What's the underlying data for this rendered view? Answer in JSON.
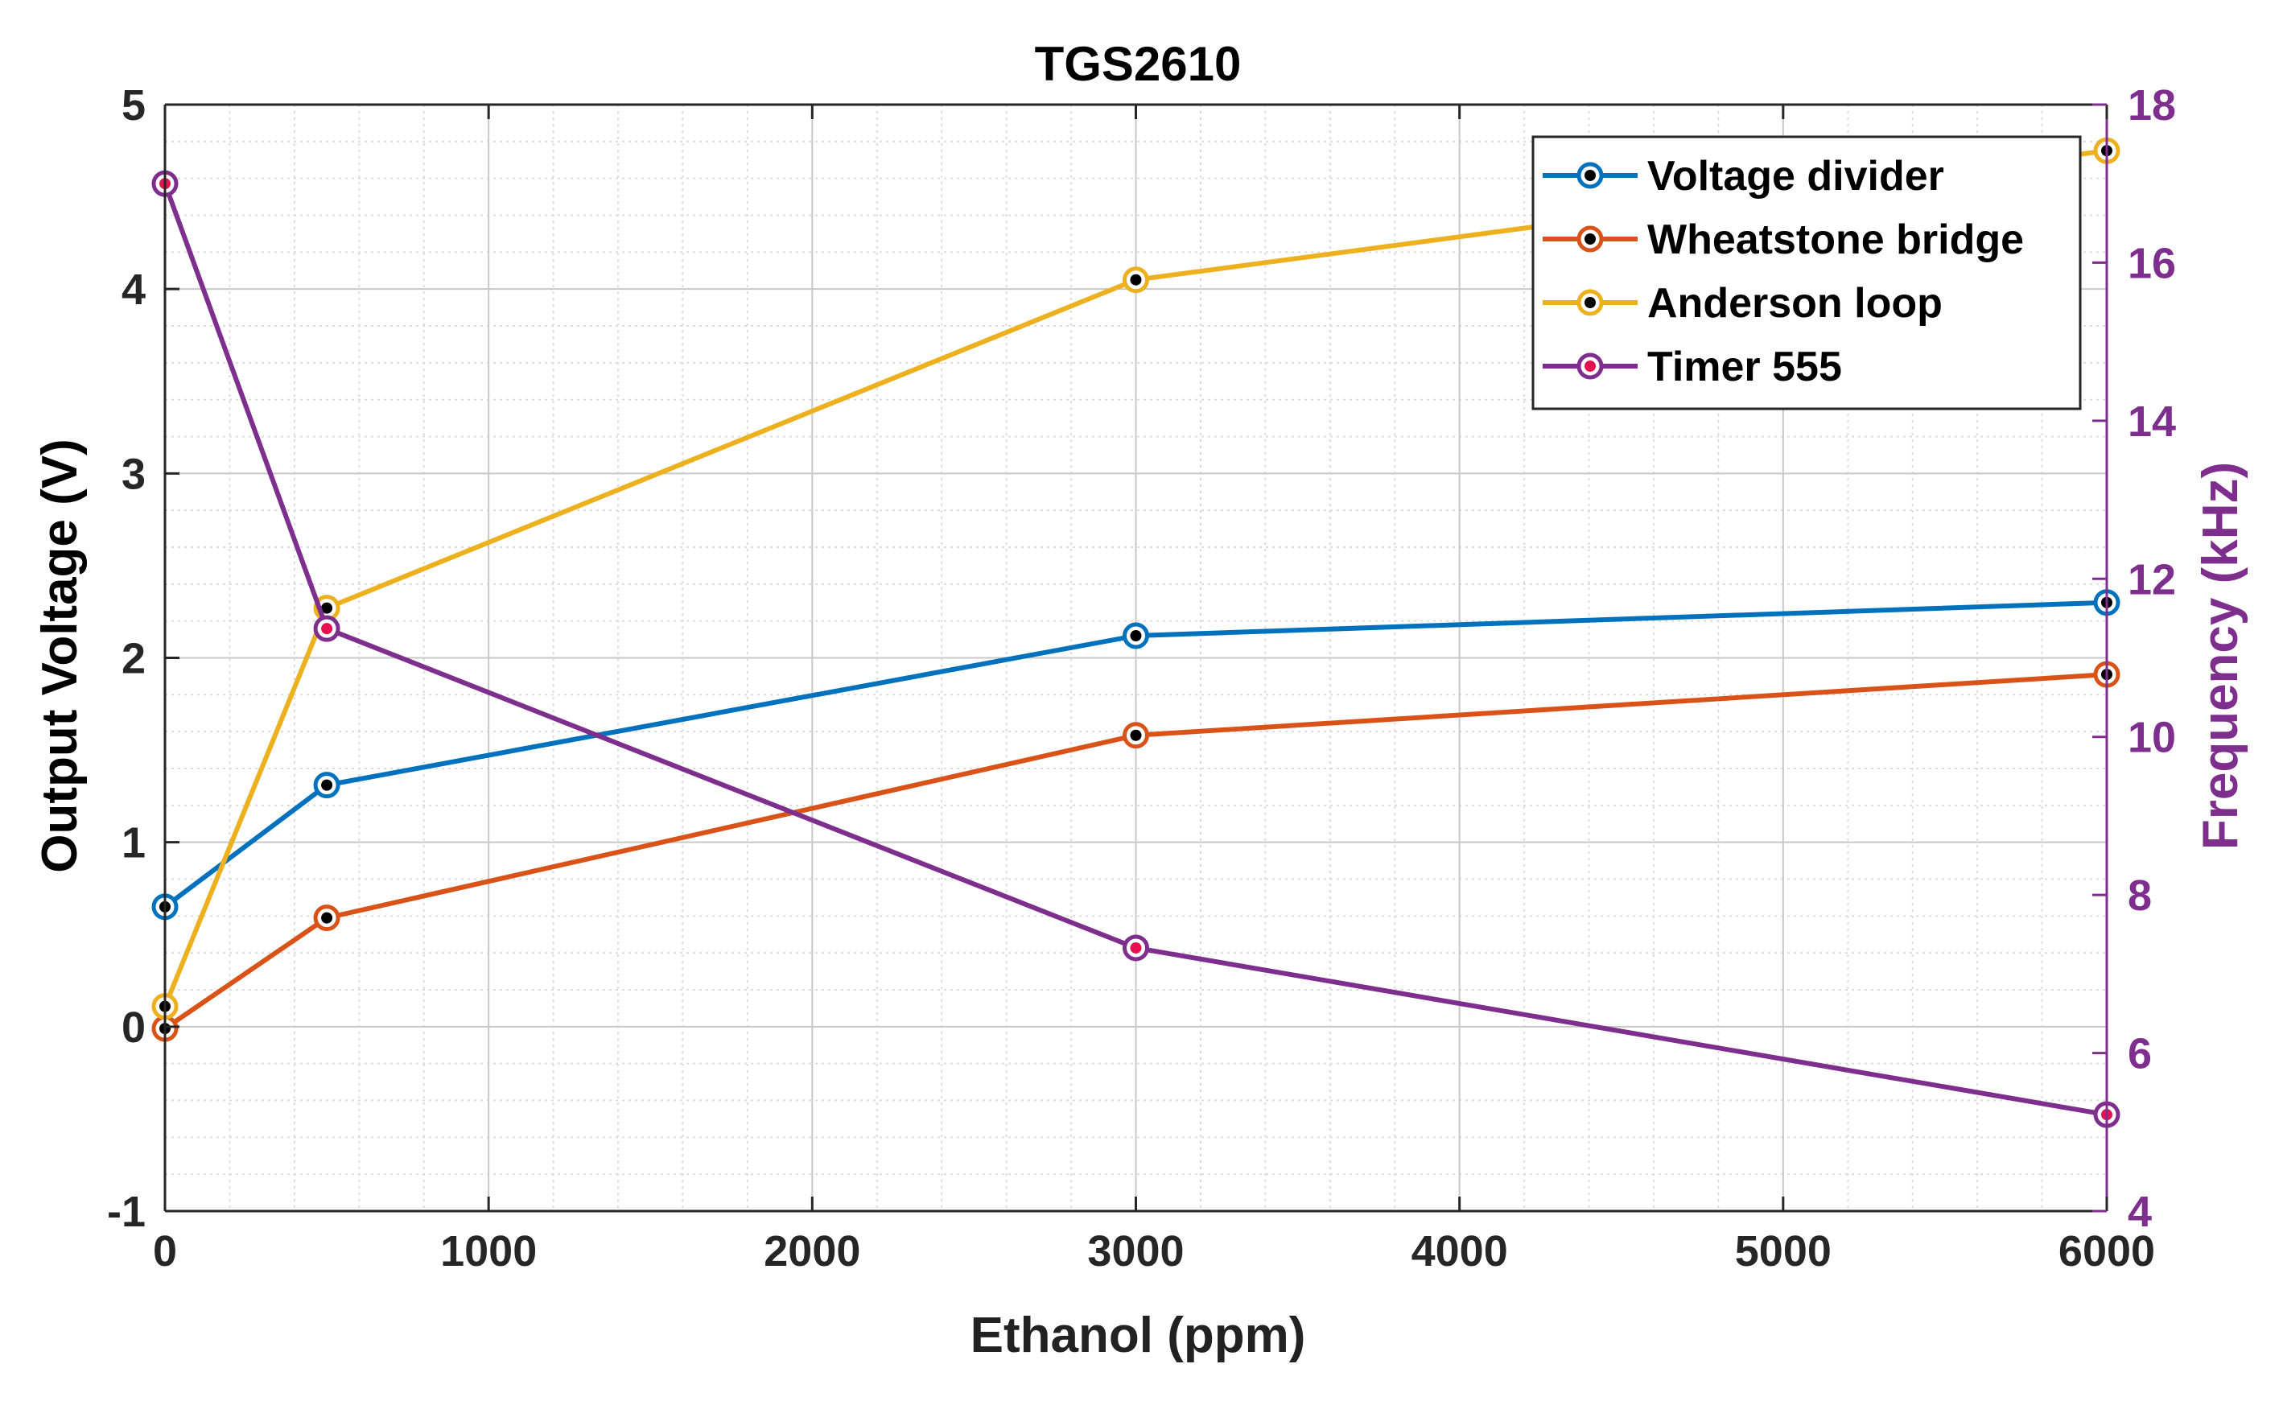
{
  "chart_data": {
    "type": "line",
    "title": "TGS2610",
    "xlabel": "Ethanol (ppm)",
    "ylabel": "Output Voltage (V)",
    "y2label": "Frequency (kHz)",
    "x": [
      0,
      500,
      3000,
      6000
    ],
    "xlim": [
      0,
      6000
    ],
    "ylim": [
      -1,
      5
    ],
    "y2lim": [
      4,
      18
    ],
    "xticks": [
      0,
      1000,
      2000,
      3000,
      4000,
      5000,
      6000
    ],
    "yticks": [
      -1,
      0,
      1,
      2,
      3,
      4,
      5
    ],
    "y2ticks": [
      4,
      6,
      8,
      10,
      12,
      14,
      16,
      18
    ],
    "xtick_labels": [
      "0",
      "1000",
      "2000",
      "3000",
      "4000",
      "5000",
      "6000"
    ],
    "ytick_labels": [
      "-1",
      "0",
      "1",
      "2",
      "3",
      "4",
      "5"
    ],
    "y2tick_labels": [
      "4",
      "6",
      "8",
      "10",
      "12",
      "14",
      "16",
      "18"
    ],
    "grid": true,
    "minor_grid": true,
    "legend_position": "top-right",
    "series": [
      {
        "name": "Voltage divider",
        "axis": "left",
        "color": "#0072BD",
        "marker_color": "#000000",
        "values": [
          0.65,
          1.31,
          2.12,
          2.3
        ]
      },
      {
        "name": "Wheatstone bridge",
        "axis": "left",
        "color": "#D95319",
        "marker_color": "#000000",
        "values": [
          -0.01,
          0.59,
          1.58,
          1.91
        ]
      },
      {
        "name": "Anderson loop",
        "axis": "left",
        "color": "#EDB120",
        "marker_color": "#000000",
        "values": [
          0.11,
          2.27,
          4.05,
          4.75
        ]
      },
      {
        "name": "Timer 555",
        "axis": "right",
        "color": "#7E2F8E",
        "marker_color": "#E8114F",
        "values": [
          17.0,
          11.37,
          7.33,
          5.22
        ]
      }
    ],
    "right_axis_color": "#7E2F8E"
  }
}
